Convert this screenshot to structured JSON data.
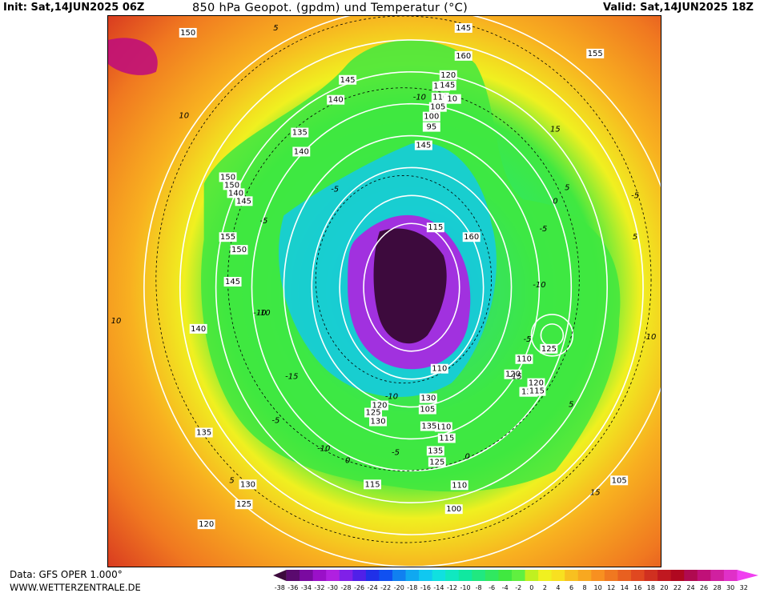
{
  "header": {
    "init": "Init: Sat,14JUN2025 06Z",
    "title": "850 hPa Geopot. (gpdm) und Temperatur (°C)",
    "valid": "Valid: Sat,14JUN2025 18Z"
  },
  "footer": {
    "source": "Data: GFS OPER 1.000°",
    "website": "WWW.WETTERZENTRALE.DE"
  },
  "colorbar": {
    "ticks": [
      "-38",
      "-36",
      "-34",
      "-32",
      "-30",
      "-28",
      "-26",
      "-24",
      "-22",
      "-20",
      "-18",
      "-16",
      "-14",
      "-12",
      "-10",
      "-8",
      "-6",
      "-4",
      "-2",
      "0",
      "2",
      "4",
      "6",
      "8",
      "10",
      "12",
      "14",
      "16",
      "18",
      "20",
      "22",
      "24",
      "26",
      "28",
      "30",
      "32"
    ],
    "colors": [
      "#3d0a3d",
      "#5a0a6e",
      "#7a0aa0",
      "#9a10c8",
      "#b020e0",
      "#8020e8",
      "#5020e8",
      "#2030e8",
      "#1050f0",
      "#1080f0",
      "#10a8f0",
      "#10c8f0",
      "#10e0e0",
      "#10e8c0",
      "#10e8a0",
      "#20e880",
      "#30e860",
      "#40e840",
      "#60f040",
      "#c0f020",
      "#f0f020",
      "#f8e020",
      "#f8c020",
      "#f8a820",
      "#f89020",
      "#f07820",
      "#e86020",
      "#e04820",
      "#d03020",
      "#c01820",
      "#b00820",
      "#b00a50",
      "#c01078",
      "#d020a0",
      "#e030c8",
      "#f040f0"
    ]
  },
  "map": {
    "background_color": "#ff9a1a",
    "contour_color": "#ffffff",
    "isotherm_color": "#000000",
    "geopotential_labels": [
      "150",
      "145",
      "160",
      "155",
      "145",
      "140",
      "135",
      "120",
      "115",
      "110",
      "105",
      "100",
      "95",
      "145",
      "10",
      "140",
      "145",
      "150",
      "150",
      "140",
      "145",
      "155",
      "150",
      "145",
      "140",
      "135",
      "130",
      "125",
      "120",
      "115",
      "110",
      "100",
      "105",
      "125",
      "110",
      "120",
      "140",
      "130",
      "120",
      "115",
      "120",
      "125",
      "130",
      "110",
      "115",
      "135",
      "125",
      "130",
      "135",
      "105",
      "110",
      "115",
      "160"
    ],
    "temperature_labels": [
      "5",
      "10",
      "15",
      "5",
      "-5",
      "-10",
      "-15",
      "-5",
      "-10",
      "-5",
      "0",
      "5",
      "10",
      "15",
      "-5",
      "-10",
      "-15",
      "-5",
      "-10",
      "-5",
      "0",
      "5",
      "10",
      "5",
      "0",
      "-5",
      "-10",
      "-10"
    ]
  }
}
